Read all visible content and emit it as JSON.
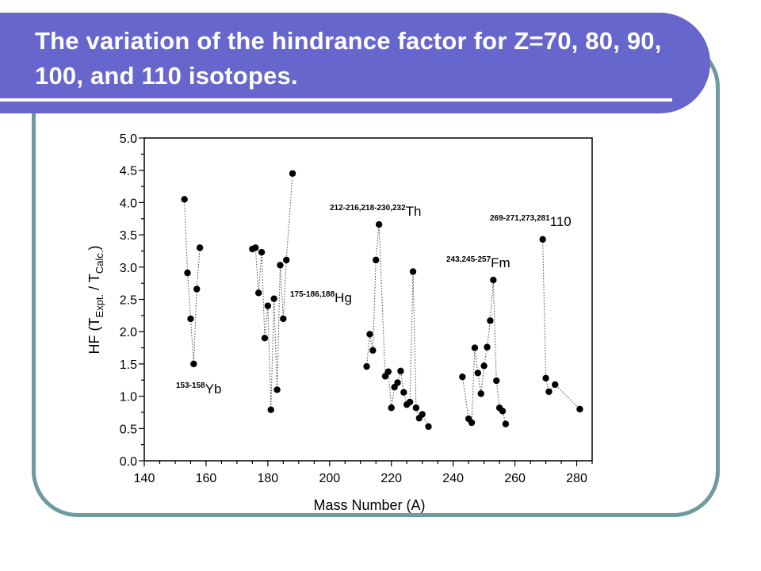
{
  "slide": {
    "title": "The variation of the hindrance factor for Z=70, 80, 90, 100, and 110 isotopes."
  },
  "colors": {
    "title_bar": "#6666cc",
    "frame_border": "#6d9b9e",
    "title_text": "#ffffff",
    "markers": "#000000"
  },
  "chart_data": {
    "type": "scatter",
    "xlabel": "Mass Number (A)",
    "ylabel": {
      "prefix": "HF (",
      "t1": "T",
      "t1_sub": "Expt.",
      "sep": " / ",
      "t2": "T",
      "t2_sub": "Calc.",
      "suffix": ")"
    },
    "xlim": [
      140,
      285
    ],
    "ylim": [
      0,
      5.0
    ],
    "xticks": [
      140,
      160,
      180,
      200,
      220,
      240,
      260,
      280
    ],
    "yticks": [
      "0.0",
      "0.5",
      "1.0",
      "1.5",
      "2.0",
      "2.5",
      "3.0",
      "3.5",
      "4.0",
      "4.5",
      "5.0"
    ],
    "grid": false,
    "series": [
      {
        "x": [
          153,
          154,
          155,
          156,
          157,
          158
        ],
        "y": [
          4.05,
          2.91,
          2.2,
          1.5,
          2.66,
          3.3
        ]
      },
      {
        "x": [
          175,
          176,
          177,
          178,
          179,
          180,
          181,
          182,
          183,
          184,
          185,
          186,
          188
        ],
        "y": [
          3.28,
          3.3,
          2.6,
          3.23,
          1.9,
          2.4,
          0.79,
          2.51,
          1.1,
          3.03,
          2.2,
          3.11,
          4.45
        ]
      },
      {
        "x": [
          212,
          213,
          214,
          215,
          216,
          218,
          219,
          220,
          221,
          222,
          223,
          224,
          225,
          226,
          227,
          228,
          229,
          230,
          232
        ],
        "y": [
          1.46,
          1.96,
          1.71,
          3.11,
          3.66,
          1.31,
          1.38,
          0.82,
          1.14,
          1.21,
          1.39,
          1.06,
          0.87,
          0.91,
          2.93,
          0.82,
          0.66,
          0.72,
          0.53
        ]
      },
      {
        "x": [
          243,
          245,
          246,
          247,
          248,
          249,
          250,
          251,
          252,
          253,
          254,
          255,
          256,
          257
        ],
        "y": [
          1.3,
          0.65,
          0.59,
          1.75,
          1.36,
          1.04,
          1.47,
          1.76,
          2.17,
          2.8,
          1.24,
          0.82,
          0.77,
          0.57
        ]
      },
      {
        "x": [
          269,
          270,
          271,
          273,
          281
        ],
        "y": [
          3.43,
          1.28,
          1.07,
          1.18,
          0.8
        ]
      }
    ],
    "annotations": [
      {
        "sup": "153-158",
        "main": "Yb"
      },
      {
        "sup": "175-186,188",
        "main": "Hg"
      },
      {
        "sup": "212-216,218-230,232",
        "main": "Th"
      },
      {
        "sup": "243,245-257",
        "main": "Fm"
      },
      {
        "sup": "269-271,273,281",
        "main": "110"
      }
    ]
  }
}
